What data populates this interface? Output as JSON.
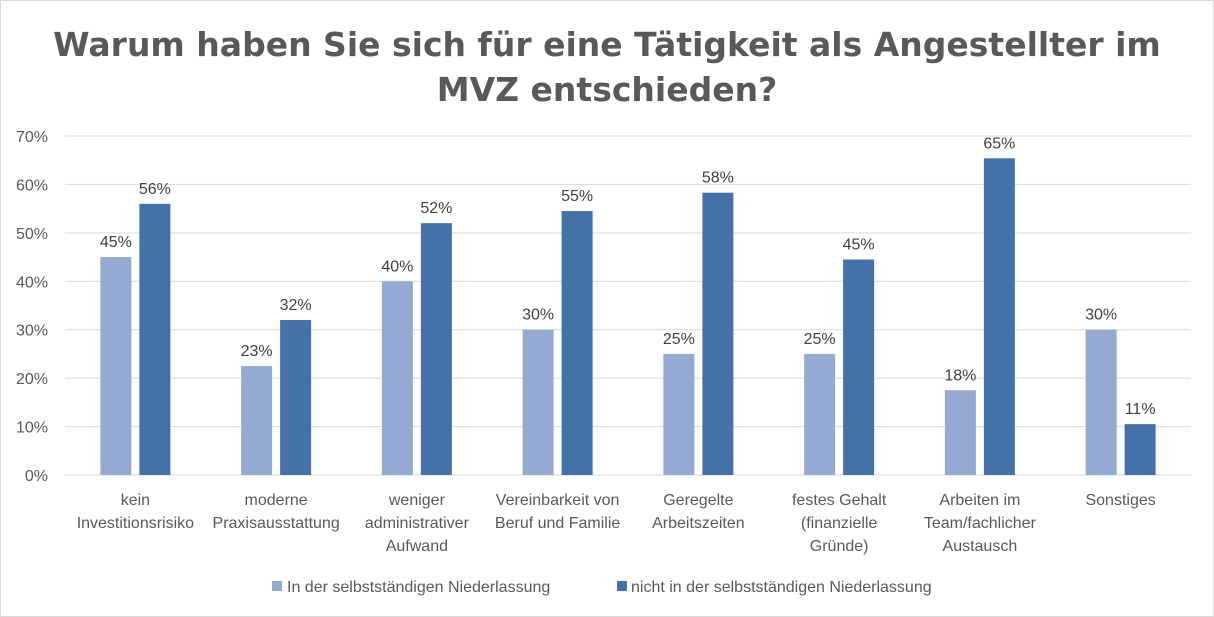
{
  "chart_data": {
    "type": "bar",
    "title_lines": [
      "Warum haben Sie sich für eine Tätigkeit als Angestellter im",
      "MVZ entschieden?"
    ],
    "categories": [
      [
        "kein",
        "Investitionsrisiko"
      ],
      [
        "moderne",
        "Praxisausstattung"
      ],
      [
        "weniger",
        "administrativer",
        "Aufwand"
      ],
      [
        "Vereinbarkeit von",
        "Beruf und Familie"
      ],
      [
        "Geregelte",
        "Arbeitszeiten"
      ],
      [
        "festes Gehalt",
        "(finanzielle",
        "Gründe)"
      ],
      [
        "Arbeiten im",
        "Team/fachlicher",
        "Austausch"
      ],
      [
        "Sonstiges"
      ]
    ],
    "series": [
      {
        "name": "In der selbstständigen Niederlassung",
        "color": "#95aad3",
        "values": [
          45,
          22.5,
          40,
          30,
          25,
          25,
          17.5,
          30
        ],
        "labels": [
          "45%",
          "23%",
          "40%",
          "30%",
          "25%",
          "25%",
          "18%",
          "30%"
        ]
      },
      {
        "name": "nicht in der selbstständigen Niederlassung",
        "color": "#4472a8",
        "values": [
          56,
          32,
          52,
          54.5,
          58.3,
          44.5,
          65.4,
          10.5
        ],
        "labels": [
          "56%",
          "32%",
          "52%",
          "55%",
          "58%",
          "45%",
          "65%",
          "11%"
        ]
      }
    ],
    "yticks": [
      "0%",
      "10%",
      "20%",
      "30%",
      "40%",
      "50%",
      "60%",
      "70%"
    ],
    "ylim": [
      0,
      70
    ],
    "grid": true,
    "gridColor": "#d9d9d9",
    "legend_position": "bottom"
  }
}
